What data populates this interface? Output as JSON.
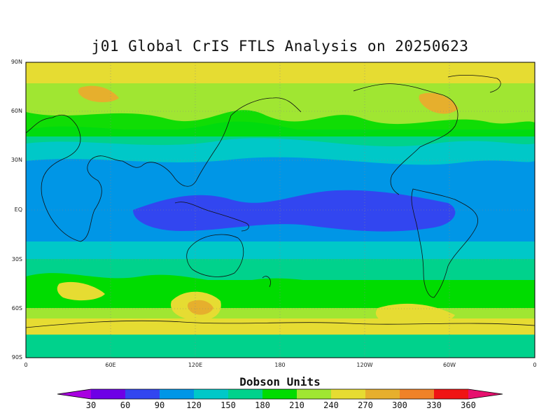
{
  "map": {
    "title": "j01 Global CrIS FTLS Analysis on 20250623",
    "units_label": "Dobson Units",
    "lat_labels": [
      "90N",
      "60N",
      "30N",
      "EQ",
      "30S",
      "60S",
      "90S"
    ],
    "lon_labels": [
      "0",
      "60E",
      "120E",
      "180",
      "120W",
      "60W",
      "0"
    ],
    "colorbar": {
      "ticks": [
        "30",
        "60",
        "90",
        "120",
        "150",
        "180",
        "210",
        "240",
        "270",
        "300",
        "330",
        "360"
      ],
      "colors": [
        "#a800e0",
        "#6e00e6",
        "#3246f0",
        "#0096e6",
        "#00c8c8",
        "#00d28c",
        "#00dc00",
        "#a0e632",
        "#e6dc32",
        "#e6af2d",
        "#f08228",
        "#f01414",
        "#e6106e"
      ]
    },
    "bands": [
      {
        "lat_top": 90,
        "lat_bottom": 82,
        "value": "240-270"
      },
      {
        "lat_top": 82,
        "lat_bottom": 55,
        "value": "210-240"
      },
      {
        "lat_top": 55,
        "lat_bottom": 45,
        "value": "180-210"
      },
      {
        "lat_top": 45,
        "lat_bottom": 30,
        "value": "150-180"
      },
      {
        "lat_top": 30,
        "lat_bottom": 18,
        "value": "120-150"
      },
      {
        "lat_top": 18,
        "lat_bottom": -18,
        "value": "90-120"
      },
      {
        "lat_top": -18,
        "lat_bottom": -32,
        "value": "120-150"
      },
      {
        "lat_top": -32,
        "lat_bottom": -42,
        "value": "150-180"
      },
      {
        "lat_top": -42,
        "lat_bottom": -50,
        "value": "180-210"
      },
      {
        "lat_top": -50,
        "lat_bottom": -60,
        "value": "210-240"
      },
      {
        "lat_top": -60,
        "lat_bottom": -70,
        "value": "240-270"
      },
      {
        "lat_top": -70,
        "lat_bottom": -80,
        "value": "210-240"
      },
      {
        "lat_top": -80,
        "lat_bottom": -90,
        "value": "180-210"
      }
    ]
  }
}
